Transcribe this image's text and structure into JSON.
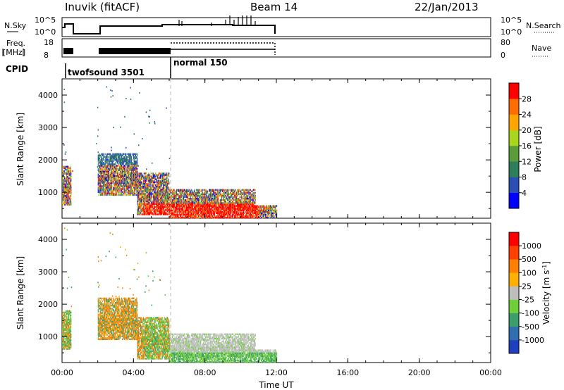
{
  "header": {
    "station": "Inuvik (fitACF)",
    "beam": "Beam 14",
    "date": "22/Jan/2013"
  },
  "top_panels": {
    "nsky_label": "N.Sky",
    "nsky_ticks": [
      "10^5",
      "10^0"
    ],
    "nsearch_label": "N.Search",
    "nsearch_ticks": [
      "10^5",
      "10^0"
    ],
    "freq_label_1": "Freq.",
    "freq_label_2": "[MHz]",
    "freq_ticks": [
      "18",
      "8"
    ],
    "nave_label": "Nave",
    "nave_ticks": [
      "80",
      "0"
    ],
    "cpid_label": "CPID",
    "cpid_modes": [
      {
        "name": "twofsound 3501",
        "start_hour": 0,
        "end_hour": 6
      },
      {
        "name": "normal 150",
        "start_hour": 6,
        "end_hour": 12
      }
    ]
  },
  "chart_data": [
    {
      "type": "heatmap",
      "name": "power",
      "ylabel": "Slant Range [km]",
      "xlabel": "",
      "x_ticks": [
        "00:00",
        "04:00",
        "08:00",
        "12:00",
        "16:00",
        "20:00",
        "00:00"
      ],
      "xlim_hours": [
        0,
        24
      ],
      "y_ticks": [
        1000,
        2000,
        3000,
        4000
      ],
      "ylim_km": [
        200,
        4500
      ],
      "colorbar": {
        "label": "Power [dB]",
        "ticks": [
          "4",
          "8",
          "12",
          "16",
          "20",
          "24",
          "28"
        ],
        "colors": [
          "#0000ff",
          "#2b4fb5",
          "#2e7d5b",
          "#5a9c3a",
          "#a7d61c",
          "#ffa500",
          "#ff6d00",
          "#ff0000"
        ]
      },
      "observations": [
        {
          "start_hour": 0.0,
          "end_hour": 0.5,
          "min_km": 600,
          "max_km": 1800
        },
        {
          "start_hour": 2.0,
          "end_hour": 4.2,
          "min_km": 900,
          "max_km": 2200
        },
        {
          "start_hour": 4.2,
          "end_hour": 6.0,
          "min_km": 300,
          "max_km": 1600
        },
        {
          "start_hour": 6.0,
          "end_hour": 10.8,
          "min_km": 200,
          "max_km": 1100
        },
        {
          "start_hour": 10.8,
          "end_hour": 12.0,
          "min_km": 200,
          "max_km": 600
        }
      ]
    },
    {
      "type": "heatmap",
      "name": "velocity",
      "ylabel": "Slant Range [km]",
      "xlabel": "Time UT",
      "x_ticks": [
        "00:00",
        "04:00",
        "08:00",
        "12:00",
        "16:00",
        "20:00",
        "00:00"
      ],
      "xlim_hours": [
        0,
        24
      ],
      "y_ticks": [
        1000,
        2000,
        3000,
        4000
      ],
      "ylim_km": [
        200,
        4500
      ],
      "colorbar": {
        "label": "Velocity [m s-1]",
        "ticks": [
          "1000",
          "500",
          "100",
          "25",
          "-25",
          "-100",
          "-500",
          "-1000"
        ],
        "colors": [
          "#1f3fbf",
          "#2f6fb0",
          "#3b9e6b",
          "#6ecf3a",
          "#bebebe",
          "#ffb000",
          "#ff8000",
          "#ff4000",
          "#ff0000"
        ]
      },
      "observations": [
        {
          "start_hour": 0.0,
          "end_hour": 0.5,
          "min_km": 600,
          "max_km": 1800
        },
        {
          "start_hour": 2.0,
          "end_hour": 4.2,
          "min_km": 900,
          "max_km": 2200
        },
        {
          "start_hour": 4.2,
          "end_hour": 6.0,
          "min_km": 300,
          "max_km": 1600
        },
        {
          "start_hour": 6.0,
          "end_hour": 10.8,
          "min_km": 200,
          "max_km": 1100
        },
        {
          "start_hour": 10.8,
          "end_hour": 12.0,
          "min_km": 200,
          "max_km": 600
        }
      ]
    }
  ]
}
